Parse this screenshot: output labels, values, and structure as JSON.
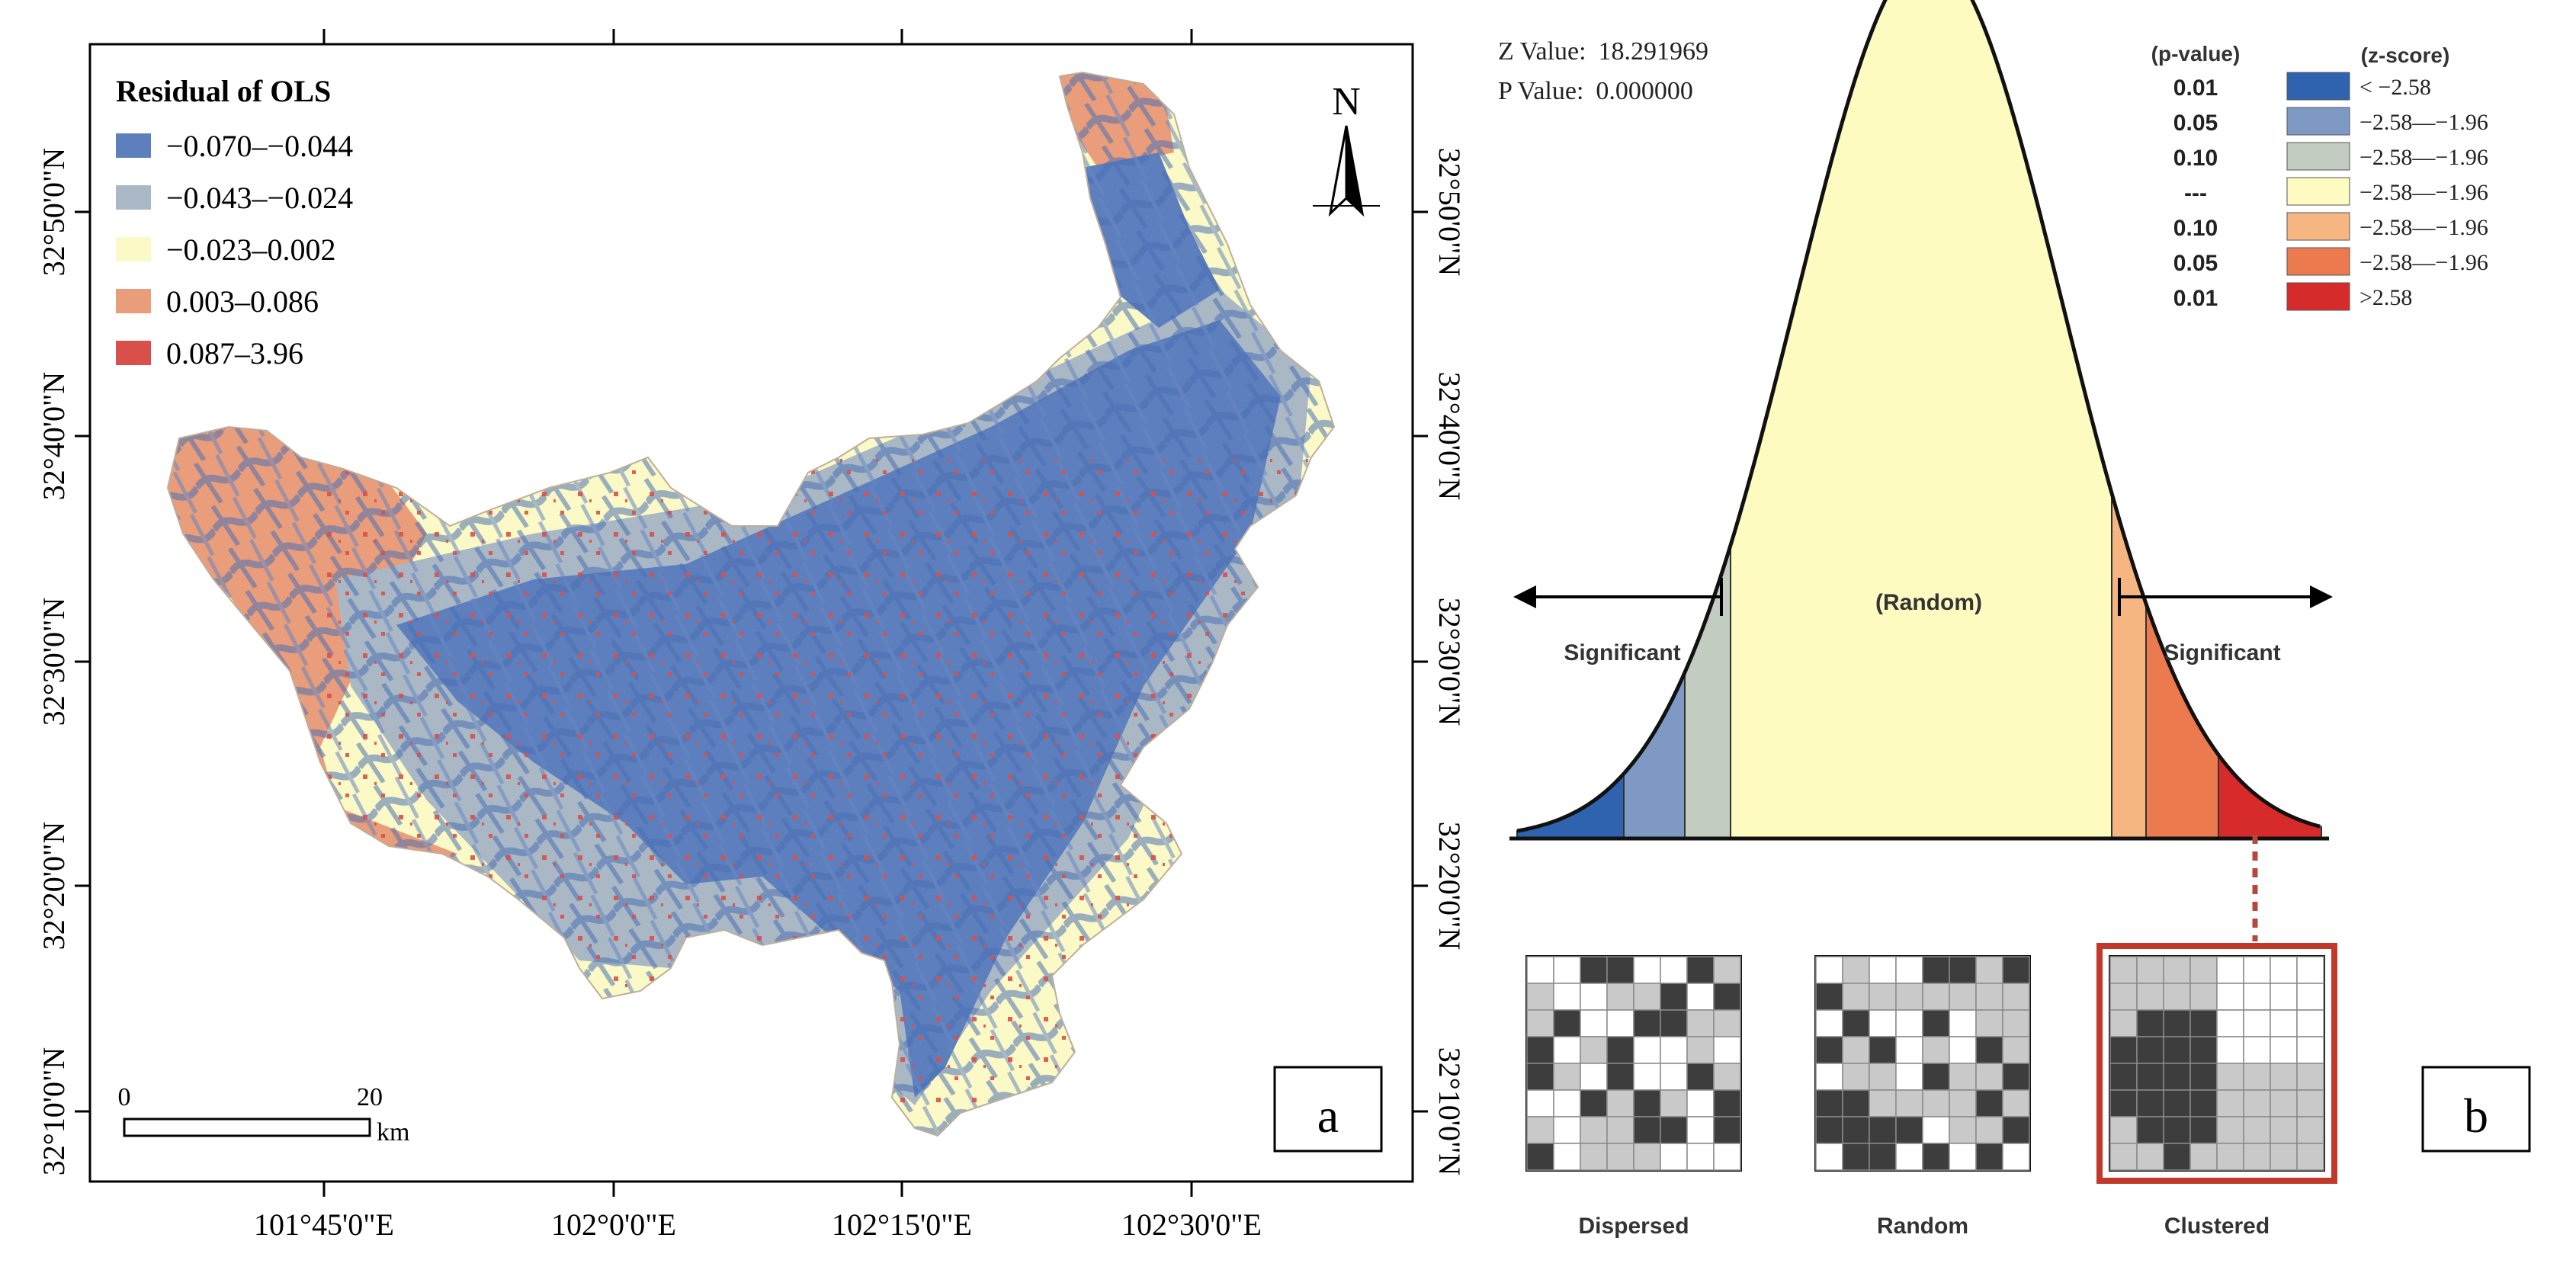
{
  "panel_a": {
    "legend": {
      "title": "Residual of OLS",
      "classes": [
        {
          "label": "−0.070–−0.044",
          "color": "#5d7fbd"
        },
        {
          "label": "−0.043–−0.024",
          "color": "#aab8c5"
        },
        {
          "label": "−0.023–0.002",
          "color": "#fbfac6"
        },
        {
          "label": "0.003–0.086",
          "color": "#e99d7b"
        },
        {
          "label": "0.087–3.96",
          "color": "#d9504a"
        }
      ]
    },
    "north_label": "N",
    "scale_bar": {
      "start": "0",
      "end": "20",
      "unit": "km"
    },
    "panel_label": "a",
    "lon_ticks": [
      "101°45'0\"E",
      "102°0'0\"E",
      "102°15'0\"E",
      "102°30'0\"E"
    ],
    "lat_ticks": [
      "32°50'0\"N",
      "32°40'0\"N",
      "32°30'0\"N",
      "32°20'0\"N",
      "32°10'0\"N"
    ],
    "lat_ticks_right": [
      "32°50'0\"N",
      "32°40'0\"N",
      "32°30'0\"N",
      "32°20'0\"N",
      "32°10'0\"N"
    ]
  },
  "panel_b": {
    "z_value_label": "Z Value:",
    "z_value": "18.291969",
    "p_value_label": "P Value:",
    "p_value": "0.000000",
    "legend": {
      "p_header": "(p-value)",
      "z_header": "(z-score)",
      "rows": [
        {
          "p": "0.01",
          "z": "< −2.58",
          "color": "#2f63b0"
        },
        {
          "p": "0.05",
          "z": "−2.58—−1.96",
          "color": "#7e9ac4"
        },
        {
          "p": "0.10",
          "z": "−2.58—−1.96",
          "color": "#c3ccc0"
        },
        {
          "p": "---",
          "z": "−2.58—−1.96",
          "color": "#fdfbc0"
        },
        {
          "p": "0.10",
          "z": "−2.58—−1.96",
          "color": "#f6b682"
        },
        {
          "p": "0.05",
          "z": "−2.58—−1.96",
          "color": "#ec7a4f"
        },
        {
          "p": "0.01",
          "z": ">2.58",
          "color": "#d62b2a"
        }
      ]
    },
    "random_label": "(Random)",
    "significant_left": "Significant",
    "significant_right": "Significant",
    "patterns": [
      "Dispersed",
      "Random",
      "Clustered"
    ],
    "panel_label": "b"
  }
}
